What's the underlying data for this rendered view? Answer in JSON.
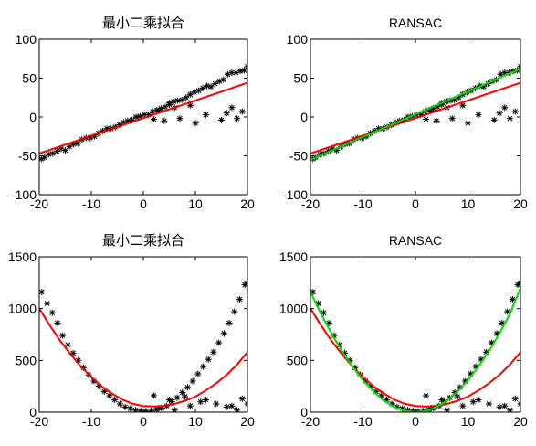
{
  "figure": {
    "background": "#ffffff",
    "colors": {
      "data": "#000000",
      "least_squares_fit": "#ff0000",
      "ransac_fit": "#00dd00"
    },
    "marker": "asterisk"
  },
  "chart_data": [
    {
      "type": "scatter",
      "title": "最小二乘拟合",
      "xlim": [
        -20,
        20
      ],
      "ylim": [
        -100,
        100
      ],
      "xticks": [
        -20,
        -10,
        0,
        10,
        20
      ],
      "yticks": [
        -100,
        -50,
        0,
        50,
        100
      ],
      "x_tick_labels": [
        "-20",
        "-10",
        "0",
        "10",
        "20"
      ],
      "y_tick_labels": [
        "-100",
        "-50",
        "0",
        "50",
        "100"
      ],
      "series": [
        {
          "kind": "points",
          "color": "#000000",
          "x": [
            -19.6,
            -19,
            -18.2,
            -17.4,
            -16.6,
            -15.8,
            -15,
            -14.2,
            -13.4,
            -12.6,
            -11.8,
            -11,
            -10.2,
            -9.4,
            -8.6,
            -7.8,
            -7,
            -6.2,
            -5.4,
            -4.6,
            -3.8,
            -3,
            -2.2,
            -1.4,
            -0.6,
            0.2,
            1,
            1.8,
            2.6,
            3.4,
            4.2,
            5,
            5.8,
            6.6,
            7.4,
            8.2,
            9,
            9.8,
            10.6,
            11.4,
            12.2,
            13,
            13.8,
            14.6,
            15.4,
            16.2,
            17,
            17.8,
            18.6,
            19.4,
            20,
            2,
            3,
            4,
            5,
            6,
            7,
            9,
            10,
            12,
            15,
            16,
            17,
            18,
            19
          ],
          "y": [
            -54,
            -52,
            -48,
            -47,
            -44,
            -41,
            -43,
            -38,
            -35,
            -34,
            -29,
            -27,
            -27,
            -25,
            -21,
            -18,
            -15,
            -15,
            -13,
            -10,
            -7,
            -5,
            -4,
            0,
            1,
            3,
            3,
            7,
            9,
            11,
            13,
            16,
            20,
            21,
            22,
            25,
            29,
            32,
            34,
            37,
            40,
            39,
            43,
            46,
            48,
            55,
            57,
            57,
            59,
            60,
            65,
            -3,
            8,
            -5,
            18,
            12,
            -2,
            15,
            -8,
            3,
            -4,
            5,
            12,
            -2,
            7
          ]
        },
        {
          "kind": "line",
          "color": "#ff0000",
          "x": [
            -20,
            20
          ],
          "y": [
            -47,
            44
          ]
        }
      ]
    },
    {
      "type": "scatter",
      "title": "RANSAC",
      "xlim": [
        -20,
        20
      ],
      "ylim": [
        -100,
        100
      ],
      "xticks": [
        -20,
        -10,
        0,
        10,
        20
      ],
      "yticks": [
        -100,
        -50,
        0,
        50,
        100
      ],
      "x_tick_labels": [
        "-20",
        "-10",
        "0",
        "10",
        "20"
      ],
      "y_tick_labels": [
        "-100",
        "-50",
        "0",
        "50",
        "100"
      ],
      "series": [
        {
          "kind": "points",
          "color": "#000000",
          "x": [
            -19.6,
            -19,
            -18.2,
            -17.4,
            -16.6,
            -15.8,
            -15,
            -14.2,
            -13.4,
            -12.6,
            -11.8,
            -11,
            -10.2,
            -9.4,
            -8.6,
            -7.8,
            -7,
            -6.2,
            -5.4,
            -4.6,
            -3.8,
            -3,
            -2.2,
            -1.4,
            -0.6,
            0.2,
            1,
            1.8,
            2.6,
            3.4,
            4.2,
            5,
            5.8,
            6.6,
            7.4,
            8.2,
            9,
            9.8,
            10.6,
            11.4,
            12.2,
            13,
            13.8,
            14.6,
            15.4,
            16.2,
            17,
            17.8,
            18.6,
            19.4,
            20,
            2,
            3,
            4,
            5,
            6,
            7,
            9,
            10,
            12,
            15,
            16,
            17,
            18,
            19
          ],
          "y": [
            -54,
            -52,
            -48,
            -47,
            -44,
            -41,
            -43,
            -38,
            -35,
            -34,
            -29,
            -27,
            -27,
            -25,
            -21,
            -18,
            -15,
            -15,
            -13,
            -10,
            -7,
            -5,
            -4,
            0,
            1,
            3,
            3,
            7,
            9,
            11,
            13,
            16,
            20,
            21,
            22,
            25,
            29,
            32,
            34,
            37,
            40,
            39,
            43,
            46,
            48,
            55,
            57,
            57,
            59,
            60,
            65,
            -3,
            8,
            -5,
            18,
            12,
            -2,
            15,
            -8,
            3,
            -4,
            5,
            12,
            -2,
            7
          ]
        },
        {
          "kind": "line",
          "color": "#ff0000",
          "x": [
            -20,
            20
          ],
          "y": [
            -47,
            44
          ]
        },
        {
          "kind": "line",
          "color": "#00dd00",
          "x": [
            -20,
            20
          ],
          "y": [
            -55,
            62
          ]
        }
      ]
    },
    {
      "type": "scatter",
      "title": "最小二乘拟合",
      "xlim": [
        -20,
        20
      ],
      "ylim": [
        0,
        1500
      ],
      "xticks": [
        -20,
        -10,
        0,
        10,
        20
      ],
      "yticks": [
        0,
        500,
        1000,
        1500
      ],
      "x_tick_labels": [
        "-20",
        "-10",
        "0",
        "10",
        "20"
      ],
      "y_tick_labels": [
        "0",
        "500",
        "1000",
        "1500"
      ],
      "series": [
        {
          "kind": "points",
          "color": "#000000",
          "x": [
            -19.5,
            -18.5,
            -17.5,
            -16.5,
            -15.5,
            -14.5,
            -13.5,
            -12.5,
            -11.5,
            -10.5,
            -9.5,
            -8.5,
            -7.5,
            -6.5,
            -5.5,
            -4.5,
            -3.5,
            -2.5,
            -1.5,
            -0.5,
            0.5,
            1.5,
            2.5,
            3.5,
            4.5,
            5.5,
            6.5,
            7.5,
            8.5,
            9.5,
            10.5,
            11.5,
            12.5,
            13.5,
            14.5,
            15.5,
            16.5,
            17.5,
            18.5,
            19.5,
            20,
            2,
            3,
            5,
            6,
            8,
            9,
            11,
            12,
            14,
            16,
            17,
            18,
            19,
            20
          ],
          "y": [
            1160,
            1050,
            960,
            860,
            740,
            650,
            570,
            500,
            430,
            360,
            300,
            250,
            200,
            160,
            120,
            80,
            50,
            35,
            20,
            12,
            8,
            12,
            25,
            40,
            60,
            100,
            140,
            190,
            240,
            300,
            370,
            440,
            510,
            580,
            670,
            760,
            860,
            970,
            1090,
            1230,
            1250,
            160,
            40,
            120,
            20,
            150,
            60,
            100,
            120,
            80,
            50,
            60,
            20,
            130,
            80
          ]
        },
        {
          "kind": "curve",
          "color": "#ff0000",
          "x": [
            -20,
            -18,
            -16,
            -14,
            -12,
            -10,
            -8,
            -6,
            -4,
            -2,
            0,
            2,
            4,
            6,
            8,
            10,
            12,
            14,
            16,
            18,
            20
          ],
          "y": [
            1000,
            840,
            690,
            560,
            440,
            340,
            250,
            180,
            120,
            80,
            60,
            55,
            60,
            80,
            110,
            150,
            210,
            280,
            360,
            460,
            580
          ]
        }
      ]
    },
    {
      "type": "scatter",
      "title": "RANSAC",
      "xlim": [
        -20,
        20
      ],
      "ylim": [
        0,
        1500
      ],
      "xticks": [
        -20,
        -10,
        0,
        10,
        20
      ],
      "yticks": [
        0,
        500,
        1000,
        1500
      ],
      "x_tick_labels": [
        "-20",
        "-10",
        "0",
        "10",
        "20"
      ],
      "y_tick_labels": [
        "0",
        "500",
        "1000",
        "1500"
      ],
      "series": [
        {
          "kind": "points",
          "color": "#000000",
          "x": [
            -19.5,
            -18.5,
            -17.5,
            -16.5,
            -15.5,
            -14.5,
            -13.5,
            -12.5,
            -11.5,
            -10.5,
            -9.5,
            -8.5,
            -7.5,
            -6.5,
            -5.5,
            -4.5,
            -3.5,
            -2.5,
            -1.5,
            -0.5,
            0.5,
            1.5,
            2.5,
            3.5,
            4.5,
            5.5,
            6.5,
            7.5,
            8.5,
            9.5,
            10.5,
            11.5,
            12.5,
            13.5,
            14.5,
            15.5,
            16.5,
            17.5,
            18.5,
            19.5,
            20,
            2,
            3,
            5,
            6,
            8,
            9,
            11,
            12,
            14,
            16,
            17,
            18,
            19,
            20
          ],
          "y": [
            1160,
            1050,
            960,
            860,
            740,
            650,
            570,
            500,
            430,
            360,
            300,
            250,
            200,
            160,
            120,
            80,
            50,
            35,
            20,
            12,
            8,
            12,
            25,
            40,
            60,
            100,
            140,
            190,
            240,
            300,
            370,
            440,
            510,
            580,
            670,
            760,
            860,
            970,
            1090,
            1230,
            1250,
            160,
            40,
            120,
            20,
            150,
            60,
            100,
            120,
            80,
            50,
            60,
            20,
            130,
            80
          ]
        },
        {
          "kind": "curve",
          "color": "#ff0000",
          "x": [
            -20,
            -18,
            -16,
            -14,
            -12,
            -10,
            -8,
            -6,
            -4,
            -2,
            0,
            2,
            4,
            6,
            8,
            10,
            12,
            14,
            16,
            18,
            20
          ],
          "y": [
            1000,
            840,
            690,
            560,
            440,
            340,
            250,
            180,
            120,
            80,
            60,
            55,
            60,
            80,
            110,
            150,
            210,
            280,
            360,
            460,
            580
          ]
        },
        {
          "kind": "curve",
          "color": "#00dd00",
          "x": [
            -20,
            -18,
            -16,
            -14,
            -12,
            -10,
            -8,
            -6,
            -4,
            -2,
            0,
            2,
            4,
            6,
            8,
            10,
            12,
            14,
            16,
            18,
            20
          ],
          "y": [
            1160,
            950,
            760,
            590,
            440,
            310,
            200,
            110,
            50,
            12,
            0,
            12,
            50,
            110,
            200,
            310,
            440,
            590,
            760,
            950,
            1200
          ]
        }
      ]
    }
  ]
}
